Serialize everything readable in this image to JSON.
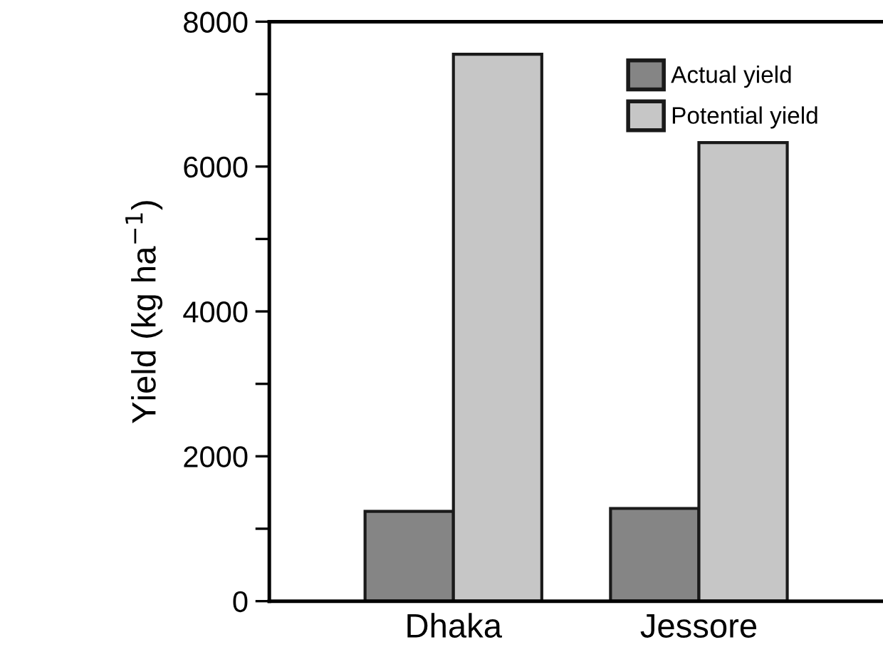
{
  "chart_data": {
    "type": "bar",
    "ylabel": "Yield (kg ha$^{−1}$)",
    "categories": [
      "Dhaka",
      "Jessore"
    ],
    "series": [
      {
        "name": "Actual yield",
        "color": "#858585",
        "values": [
          1240,
          1280
        ]
      },
      {
        "name": "Potential yield",
        "color": "#c6c6c6",
        "values": [
          7550,
          6330
        ]
      }
    ],
    "ylim": [
      0,
      8000
    ],
    "yticks": [
      0,
      {
        "value": 1000,
        "label": null
      },
      2000,
      {
        "value": 3000,
        "label": null
      },
      4000,
      {
        "value": 5000,
        "label": null
      },
      6000,
      {
        "value": 7000,
        "label": null
      },
      8000
    ],
    "legend": "top right",
    "grid": false
  }
}
